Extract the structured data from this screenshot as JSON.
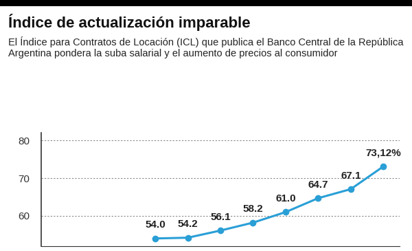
{
  "chart_data": {
    "type": "line",
    "title": "Índice de actualización imparable",
    "subtitle": "El Índice para Contratos de Locación (ICL) que publica el Banco Central de la República Argentina pondera la suba salarial y el aumento de precios al consumidor",
    "categories": [
      null,
      null,
      null,
      null,
      null,
      null,
      null,
      null
    ],
    "values": [
      54.0,
      54.2,
      56.1,
      58.2,
      61.0,
      64.7,
      67.1,
      73.12
    ],
    "value_labels": [
      null,
      null,
      null,
      null,
      null,
      null,
      null,
      "73,12%"
    ],
    "data_labels": true,
    "color": "#2a9fd6",
    "marker": "o",
    "line_style": "solid",
    "ylim": [
      52,
      82
    ],
    "yticks": [
      60,
      70,
      80
    ],
    "grid": true,
    "tick_labels": "y"
  }
}
